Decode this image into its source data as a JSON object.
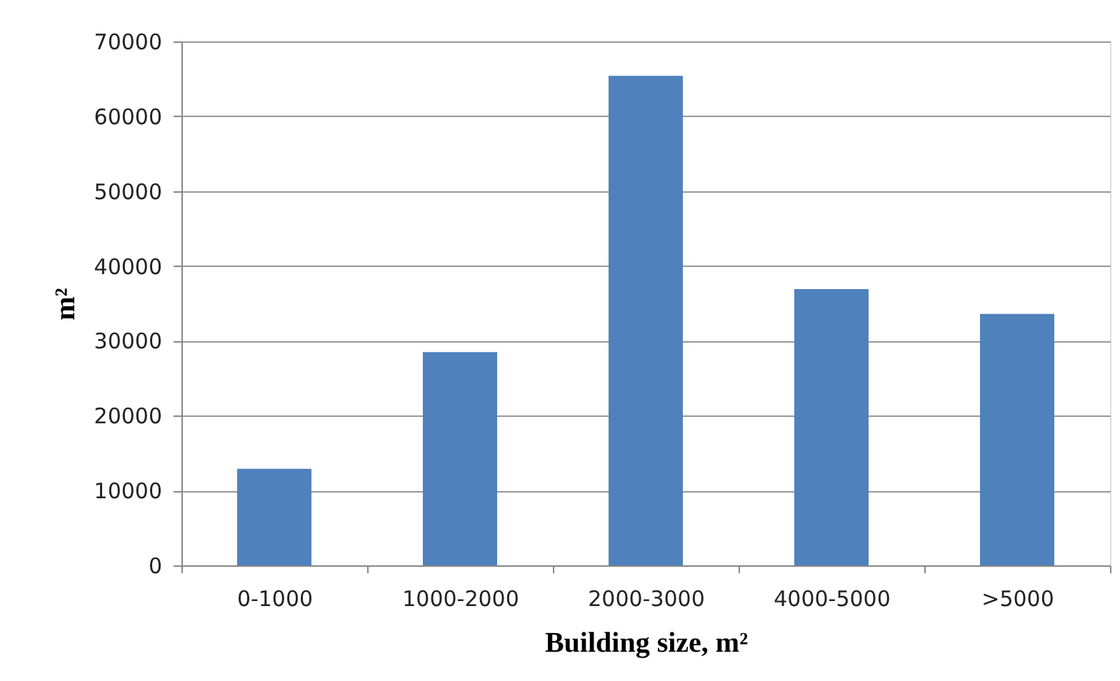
{
  "chart_data": {
    "type": "bar",
    "xlabel": "Building size, m²",
    "ylabel": "m²",
    "categories": [
      "0-1000",
      "1000-2000",
      "2000-3000",
      "4000-5000",
      ">5000"
    ],
    "values": [
      12900,
      28500,
      65400,
      36900,
      33600
    ],
    "color": "#4f81bd",
    "ylim": [
      0,
      70000
    ],
    "yticks": [
      0,
      10000,
      20000,
      30000,
      40000,
      50000,
      60000,
      70000
    ],
    "grid": "y"
  }
}
